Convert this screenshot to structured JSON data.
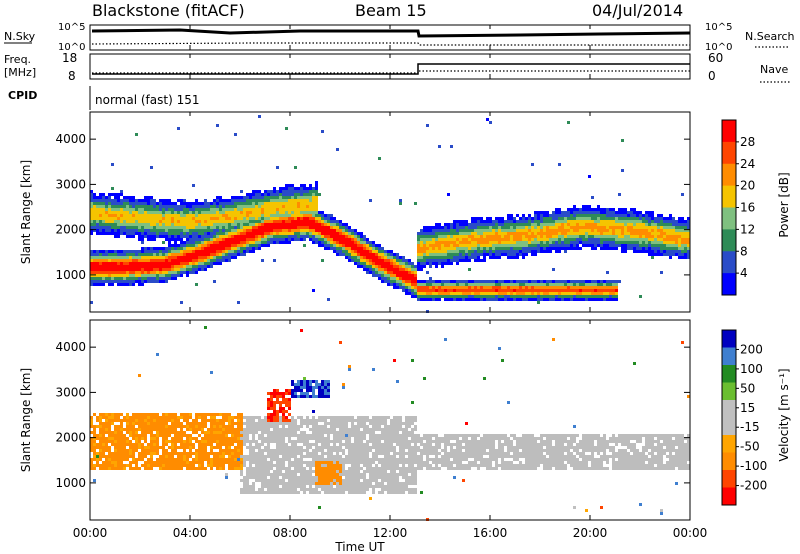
{
  "header": {
    "station": "Blackstone (fitACF)",
    "beam": "Beam 15",
    "date": "04/Jul/2014"
  },
  "top_panels": {
    "nsky_label": "N.Sky",
    "nsky_ticks": [
      "10^5",
      "10^0"
    ],
    "nsearch_label": "N.Search",
    "nsearch_ticks": [
      "10^5",
      "10^0"
    ],
    "freq_label": "Freq.",
    "freq_unit": "[MHz]",
    "freq_ticks": [
      "18",
      "8"
    ],
    "nave_label": "Nave",
    "nave_ticks": [
      "60",
      "0"
    ],
    "cpid_label": "CPID",
    "cpid_value": "normal (fast) 151"
  },
  "colors": {
    "power_scale": [
      "#0000ff",
      "#2a4cc8",
      "#2e8b57",
      "#7fc080",
      "#f5c400",
      "#ff8c00",
      "#ff4500",
      "#ff0000"
    ],
    "velocity_scale": [
      "#ff0000",
      "#ff4500",
      "#ff8c00",
      "#ffa500",
      "#c0c0c0",
      "#c0c0c0",
      "#6abe30",
      "#228b22",
      "#3f7fd0",
      "#0000c0"
    ],
    "ground_scatter": "#bdbdbd"
  },
  "chart_data": [
    {
      "type": "heatmap",
      "panel": "power",
      "ylabel": "Slant Range [km]",
      "y_ticks": [
        "4000",
        "3000",
        "2000",
        "1000"
      ],
      "ylim": [
        180,
        4600
      ],
      "xlim_hours": [
        0,
        24
      ],
      "x_ticks": [
        "00:00",
        "04:00",
        "08:00",
        "12:00",
        "16:00",
        "20:00",
        "00:00"
      ],
      "xlabel": "Time UT",
      "colorbar": {
        "label": "Power [dB]",
        "ticks": [
          "28",
          "24",
          "20",
          "16",
          "12",
          "8",
          "4"
        ],
        "range": [
          0,
          30
        ]
      },
      "bands": [
        {
          "start_hour": 0,
          "end_hour": 13,
          "center_km": [
            1200,
            1200,
            1250,
            1500,
            1800,
            2100,
            2200,
            1800,
            1300,
            900
          ],
          "width_km": 250,
          "peak_db": 30
        },
        {
          "start_hour": 0,
          "end_hour": 9,
          "center_km": [
            2400,
            2300,
            2200,
            2300,
            2500,
            2600
          ],
          "width_km": 300,
          "peak_db": 18
        },
        {
          "start_hour": 13,
          "end_hour": 24,
          "center_km": [
            1600,
            1800,
            1900,
            2100,
            2000,
            1800
          ],
          "width_km": 300,
          "peak_db": 20
        },
        {
          "start_hour": 13,
          "end_hour": 21,
          "center_km": [
            700,
            700,
            700,
            700
          ],
          "width_km": 150,
          "peak_db": 25
        }
      ]
    },
    {
      "type": "heatmap",
      "panel": "velocity",
      "ylabel": "Slant Range [km]",
      "y_ticks": [
        "4000",
        "3000",
        "2000",
        "1000"
      ],
      "ylim": [
        180,
        4600
      ],
      "xlim_hours": [
        0,
        24
      ],
      "x_ticks": [
        "00:00",
        "04:00",
        "08:00",
        "12:00",
        "16:00",
        "20:00",
        "00:00"
      ],
      "xlabel": "Time UT",
      "colorbar": {
        "label": "Velocity [m s⁻¹]",
        "ticks": [
          "200",
          "100",
          "50",
          "15",
          "-15",
          "-50",
          "-100",
          "-200"
        ],
        "range": [
          -250,
          250
        ]
      },
      "regions": [
        {
          "start_hour": 0,
          "end_hour": 6,
          "range_km": [
            1300,
            2600
          ],
          "velocity": -60
        },
        {
          "start_hour": 7,
          "end_hour": 8,
          "range_km": [
            2400,
            3100
          ],
          "velocity": -200
        },
        {
          "start_hour": 8,
          "end_hour": 9.5,
          "range_km": [
            2900,
            3300
          ],
          "velocity": 200
        },
        {
          "start_hour": 9,
          "end_hour": 10,
          "range_km": [
            1000,
            1500
          ],
          "velocity": -80
        },
        {
          "start_hour": 6,
          "end_hour": 13,
          "range_km": [
            800,
            2500
          ],
          "velocity": 0
        },
        {
          "start_hour": 13,
          "end_hour": 24,
          "range_km": [
            1300,
            2100
          ],
          "velocity": 0
        }
      ]
    }
  ]
}
